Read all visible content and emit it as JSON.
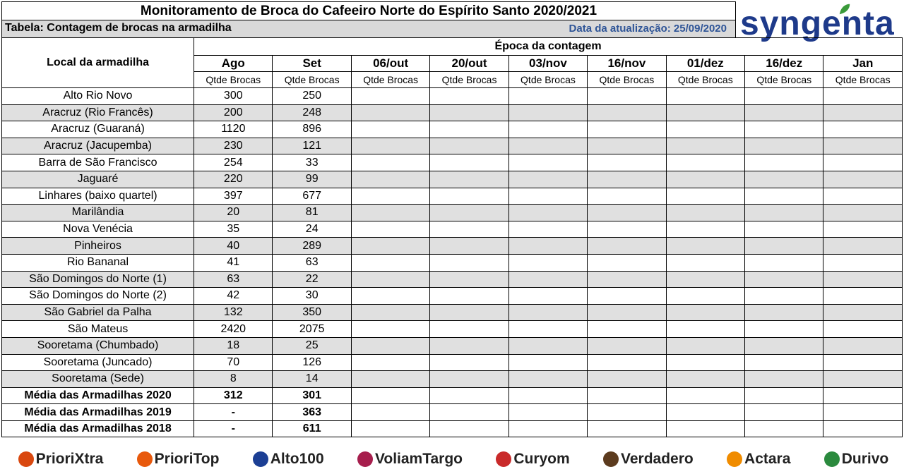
{
  "title": "Monitoramento de Broca do Cafeeiro Norte do Espírito Santo 2020/2021",
  "subtitle_left": "Tabela: Contagem de brocas na armadilha",
  "subtitle_right": "Data da atualização: 25/09/2020",
  "logo_text": "syngenta",
  "header": {
    "local": "Local da armadilha",
    "epoca": "Época da contagem",
    "periods": [
      "Ago",
      "Set",
      "06/out",
      "20/out",
      "03/nov",
      "16/nov",
      "01/dez",
      "16/dez",
      "Jan"
    ],
    "unit": "Qtde Brocas"
  },
  "rows": [
    {
      "local": "Alto Rio Novo",
      "ago": "300",
      "set": "250"
    },
    {
      "local": "Aracruz (Rio Francês)",
      "ago": "200",
      "set": "248"
    },
    {
      "local": "Aracruz (Guaraná)",
      "ago": "1120",
      "set": "896"
    },
    {
      "local": "Aracruz (Jacupemba)",
      "ago": "230",
      "set": "121"
    },
    {
      "local": "Barra de São Francisco",
      "ago": "254",
      "set": "33"
    },
    {
      "local": "Jaguaré",
      "ago": "220",
      "set": "99"
    },
    {
      "local": "Linhares (baixo quartel)",
      "ago": "397",
      "set": "677"
    },
    {
      "local": "Marilândia",
      "ago": "20",
      "set": "81"
    },
    {
      "local": "Nova Venécia",
      "ago": "35",
      "set": "24"
    },
    {
      "local": "Pinheiros",
      "ago": "40",
      "set": "289"
    },
    {
      "local": "Rio Bananal",
      "ago": "41",
      "set": "63"
    },
    {
      "local": "São Domingos do Norte (1)",
      "ago": "63",
      "set": "22"
    },
    {
      "local": "São Domingos do Norte (2)",
      "ago": "42",
      "set": "30"
    },
    {
      "local": "São Gabriel da Palha",
      "ago": "132",
      "set": "350"
    },
    {
      "local": "São Mateus",
      "ago": "2420",
      "set": "2075"
    },
    {
      "local": "Sooretama (Chumbado)",
      "ago": "18",
      "set": "25"
    },
    {
      "local": "Sooretama (Juncado)",
      "ago": "70",
      "set": "126"
    },
    {
      "local": "Sooretama (Sede)",
      "ago": "8",
      "set": "14"
    }
  ],
  "averages": [
    {
      "local": "Média das Armadilhas 2020",
      "ago": "312",
      "set": "301"
    },
    {
      "local": "Média das Armadilhas 2019",
      "ago": "-",
      "set": "363"
    },
    {
      "local": "Média das Armadilhas 2018",
      "ago": "-",
      "set": "611"
    }
  ],
  "brands": [
    {
      "name": "PrioriXtra",
      "color": "#d9480f"
    },
    {
      "name": "PrioriTop",
      "color": "#e8590c"
    },
    {
      "name": "Alto100",
      "color": "#1c3f94"
    },
    {
      "name": "VoliamTargo",
      "color": "#a61e4d"
    },
    {
      "name": "Curyom",
      "color": "#c92a2a"
    },
    {
      "name": "Verdadero",
      "color": "#5c3b1e"
    },
    {
      "name": "Actara",
      "color": "#f08c00"
    },
    {
      "name": "Durivo",
      "color": "#2b8a3e"
    }
  ],
  "colors": {
    "accent_date": "#2f5597",
    "shade": "#e0e0e0",
    "logo": "#1e3a8a"
  }
}
